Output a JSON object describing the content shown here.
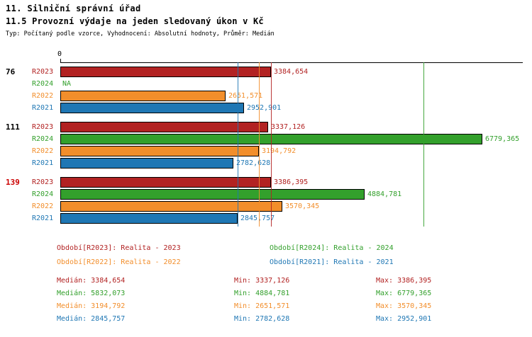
{
  "header": {
    "title": "11. Silniční správní úřad",
    "subtitle": "11.5 Provozní výdaje na jeden sledovaný úkon v Kč",
    "meta": "Typ: Počítaný podle vzorce, Vyhodnocení: Absolutní hodnoty, Průměr: Medián"
  },
  "colors": {
    "r2023": "#B22222",
    "r2024": "#33A02C",
    "r2022": "#F28E2B",
    "r2021": "#1F77B4",
    "highlight_group": "#CC0000",
    "axis": "#000000"
  },
  "chart_data": {
    "type": "bar",
    "orientation": "horizontal",
    "title": "11.5 Provozní výdaje na jeden sledovaný úkon v Kč",
    "x_start_label": "0",
    "xlim": [
      0,
      7430
    ],
    "unit": "Kč",
    "series_order": [
      "R2023",
      "R2024",
      "R2022",
      "R2021"
    ],
    "groups": [
      {
        "label": "76",
        "highlighted": false,
        "bars": [
          {
            "series": "R2023",
            "value": 3384.654,
            "label": "3384,654"
          },
          {
            "series": "R2024",
            "value": null,
            "label": "NA"
          },
          {
            "series": "R2022",
            "value": 2651.571,
            "label": "2651,571"
          },
          {
            "series": "R2021",
            "value": 2952.901,
            "label": "2952,901"
          }
        ]
      },
      {
        "label": "111",
        "highlighted": false,
        "bars": [
          {
            "series": "R2023",
            "value": 3337.126,
            "label": "3337,126"
          },
          {
            "series": "R2024",
            "value": 6779.365,
            "label": "6779,365"
          },
          {
            "series": "R2022",
            "value": 3194.792,
            "label": "3194,792"
          },
          {
            "series": "R2021",
            "value": 2782.628,
            "label": "2782,628"
          }
        ]
      },
      {
        "label": "139",
        "highlighted": true,
        "bars": [
          {
            "series": "R2023",
            "value": 3386.395,
            "label": "3386,395"
          },
          {
            "series": "R2024",
            "value": 4884.781,
            "label": "4884,781"
          },
          {
            "series": "R2022",
            "value": 3570.345,
            "label": "3570,345"
          },
          {
            "series": "R2021",
            "value": 2845.757,
            "label": "2845,757"
          }
        ]
      }
    ],
    "median_lines": [
      {
        "series": "R2021",
        "value": 2845.757
      },
      {
        "series": "R2022",
        "value": 3194.792
      },
      {
        "series": "R2023",
        "value": 3384.654
      },
      {
        "series": "R2024",
        "value": 5832.073
      }
    ]
  },
  "legend": [
    {
      "series": "R2023",
      "text": "Období[R2023]: Realita - 2023"
    },
    {
      "series": "R2024",
      "text": "Období[R2024]: Realita - 2024"
    },
    {
      "series": "R2022",
      "text": "Období[R2022]: Realita - 2022"
    },
    {
      "series": "R2021",
      "text": "Období[R2021]: Realita - 2021"
    }
  ],
  "stats": [
    {
      "series": "R2023",
      "median": "Medián: 3384,654",
      "min": "Min: 3337,126",
      "max": "Max: 3386,395"
    },
    {
      "series": "R2024",
      "median": "Medián: 5832,073",
      "min": "Min: 4884,781",
      "max": "Max: 6779,365"
    },
    {
      "series": "R2022",
      "median": "Medián: 3194,792",
      "min": "Min: 2651,571",
      "max": "Max: 3570,345"
    },
    {
      "series": "R2021",
      "median": "Medián: 2845,757",
      "min": "Min: 2782,628",
      "max": "Max: 2952,901"
    }
  ]
}
